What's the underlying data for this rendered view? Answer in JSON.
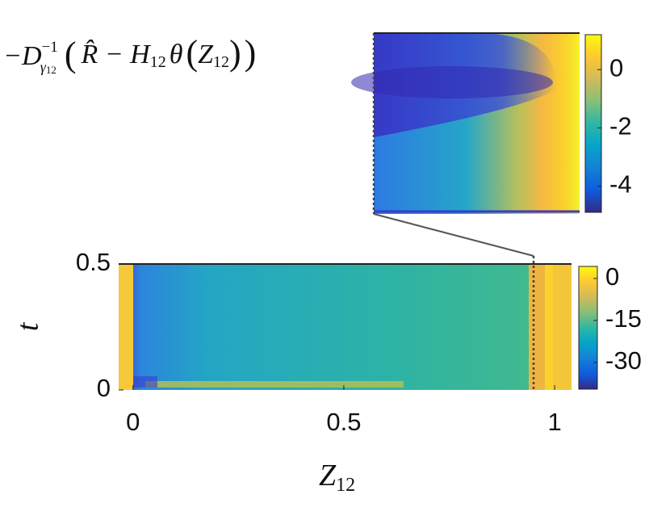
{
  "chart_data": {
    "type": "heatmap",
    "inset_label": [
      "−D",
      "−1",
      "γ",
      "12",
      "(",
      "R̂ − H",
      "12",
      "θ",
      "(",
      "Z",
      "12",
      ")",
      ")"
    ],
    "xlabel": [
      "Z",
      "12"
    ],
    "ylabel": "t",
    "xlim": [
      -0.034,
      1.04
    ],
    "ylim": [
      0,
      0.5
    ],
    "xticks": [
      0,
      0.5,
      1
    ],
    "yticks": [
      0,
      0.5
    ],
    "clim": [
      -39.5,
      4.3
    ],
    "cticks": [
      0,
      -15,
      -30
    ],
    "inset_clim": [
      -4.9,
      1.2
    ],
    "inset_cticks": [
      0,
      -2,
      -4
    ],
    "inset_xlim": [
      0.93,
      1.04
    ],
    "colormap": [
      "#352a87",
      "#0f5cdd",
      "#1481d6",
      "#06a4ca",
      "#2eb7a4",
      "#87bf77",
      "#d1bb59",
      "#fec832",
      "#f9fb0e"
    ]
  }
}
